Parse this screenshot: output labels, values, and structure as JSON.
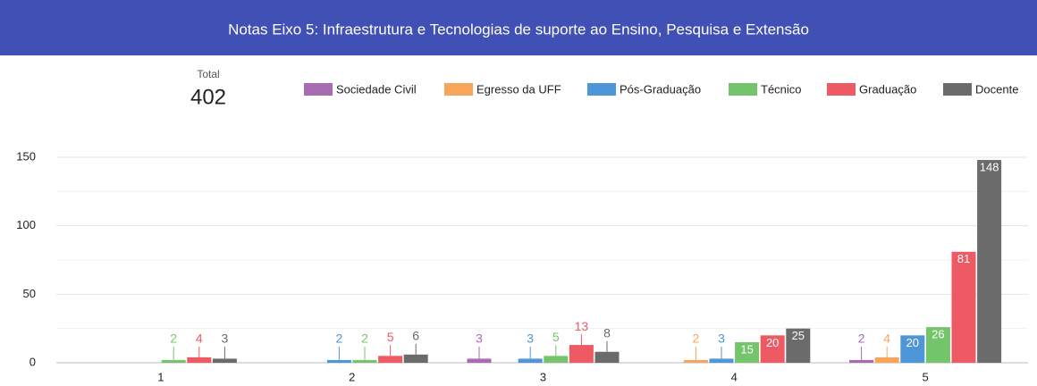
{
  "chart_data": {
    "type": "bar",
    "title": "Notas Eixo 5: Infraestrutura e Tecnologias de suporte ao Ensino, Pesquisa e Extensão",
    "total_label": "Total",
    "total": 402,
    "categories": [
      "1",
      "2",
      "3",
      "4",
      "5"
    ],
    "series": [
      {
        "name": "Sociedade Civil",
        "color": "#a66bb0",
        "values": [
          null,
          null,
          3,
          null,
          2
        ]
      },
      {
        "name": "Egresso da UFF",
        "color": "#f6a55a",
        "values": [
          null,
          null,
          null,
          2,
          4
        ]
      },
      {
        "name": "Pós-Graduação",
        "color": "#4f96d8",
        "values": [
          null,
          2,
          3,
          3,
          20
        ]
      },
      {
        "name": "Técnico",
        "color": "#73c46b",
        "values": [
          2,
          2,
          5,
          15,
          26
        ]
      },
      {
        "name": "Graduação",
        "color": "#ee5a63",
        "values": [
          4,
          5,
          13,
          20,
          81
        ]
      },
      {
        "name": "Docente",
        "color": "#6b6b6b",
        "values": [
          3,
          6,
          8,
          25,
          148
        ]
      }
    ],
    "ylim": [
      0,
      150
    ],
    "yticks": [
      0,
      50,
      100,
      150
    ],
    "minor_yticks": [
      25,
      75,
      125
    ],
    "grid": true,
    "legend": "top-right"
  }
}
